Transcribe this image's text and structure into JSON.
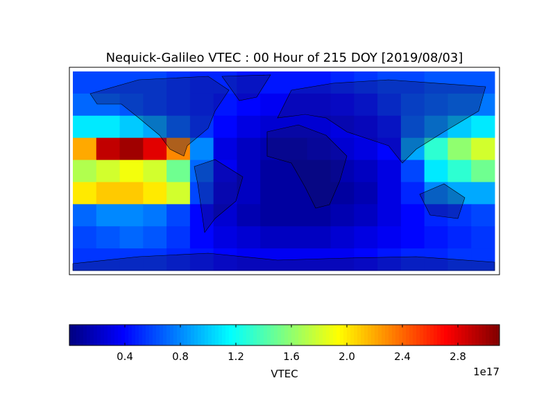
{
  "chart_data": {
    "type": "heatmap",
    "title": "Nequick-Galileo VTEC : 00 Hour of 215 DOY [2019/08/03]",
    "xlim": [
      -180,
      180
    ],
    "ylim": [
      90,
      -90
    ],
    "colormap": "jet",
    "z": [
      [
        0.6,
        0.6,
        0.6,
        0.6,
        0.55,
        0.5,
        0.5,
        0.45,
        0.45,
        0.45,
        0.45,
        0.5,
        0.55,
        0.6,
        0.6,
        0.65,
        0.65,
        0.65
      ],
      [
        0.7,
        0.7,
        0.65,
        0.6,
        0.55,
        0.5,
        0.45,
        0.4,
        0.35,
        0.35,
        0.35,
        0.4,
        0.45,
        0.55,
        0.65,
        0.7,
        0.75,
        0.75
      ],
      [
        1.1,
        1.1,
        1.0,
        0.9,
        0.7,
        0.55,
        0.4,
        0.3,
        0.25,
        0.25,
        0.25,
        0.3,
        0.35,
        0.45,
        0.7,
        0.85,
        1.0,
        1.1
      ],
      [
        2.2,
        2.9,
        3.0,
        2.8,
        2.3,
        0.8,
        0.3,
        0.2,
        0.15,
        0.15,
        0.2,
        0.25,
        0.3,
        0.4,
        0.9,
        1.3,
        1.6,
        1.8
      ],
      [
        1.7,
        1.8,
        1.9,
        1.8,
        1.5,
        0.7,
        0.35,
        0.2,
        0.1,
        0.1,
        0.1,
        0.15,
        0.2,
        0.3,
        0.6,
        1.1,
        1.3,
        1.5
      ],
      [
        2.0,
        2.1,
        2.1,
        2.0,
        1.8,
        0.6,
        0.3,
        0.2,
        0.1,
        0.1,
        0.1,
        0.1,
        0.15,
        0.3,
        0.5,
        0.8,
        0.9,
        0.9
      ],
      [
        0.7,
        0.8,
        0.8,
        0.75,
        0.6,
        0.4,
        0.25,
        0.15,
        0.1,
        0.1,
        0.1,
        0.15,
        0.2,
        0.3,
        0.4,
        0.5,
        0.55,
        0.6
      ],
      [
        0.6,
        0.65,
        0.7,
        0.65,
        0.55,
        0.4,
        0.3,
        0.25,
        0.2,
        0.2,
        0.2,
        0.25,
        0.3,
        0.35,
        0.4,
        0.45,
        0.5,
        0.55
      ],
      [
        0.55,
        0.55,
        0.55,
        0.55,
        0.5,
        0.45,
        0.4,
        0.35,
        0.35,
        0.35,
        0.35,
        0.35,
        0.4,
        0.45,
        0.5,
        0.5,
        0.55,
        0.55
      ]
    ],
    "colorbar": {
      "label": "VTEC",
      "offset_label": "1e17",
      "clim": [
        0,
        3.1
      ],
      "ticks": [
        0.4,
        0.8,
        1.2,
        1.6,
        {
          "value": 2,
          "label": "2.0"
        },
        2.4,
        2.8
      ]
    }
  }
}
